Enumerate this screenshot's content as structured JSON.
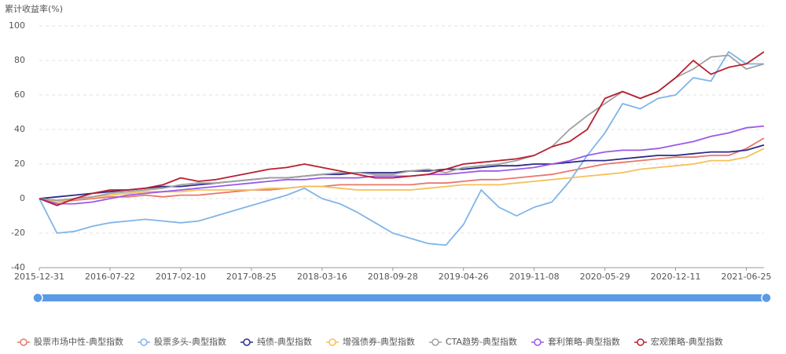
{
  "chart_data": {
    "type": "line",
    "title": "累计收益率(%)",
    "categories": [
      "2015-12-31",
      null,
      null,
      null,
      "2016-07-22",
      null,
      null,
      null,
      "2017-02-10",
      null,
      null,
      null,
      "2017-08-25",
      null,
      null,
      null,
      "2018-03-16",
      null,
      null,
      null,
      "2018-09-28",
      null,
      null,
      null,
      "2019-04-26",
      null,
      null,
      null,
      "2019-11-08",
      null,
      null,
      null,
      "2020-05-29",
      null,
      null,
      null,
      "2020-12-11",
      null,
      null,
      null,
      "2021-06-25",
      null
    ],
    "ylim": [
      -40,
      100
    ],
    "yticks": [
      -40,
      -20,
      0,
      20,
      40,
      60,
      80,
      100
    ],
    "grid": true,
    "series": [
      {
        "name": "股票市场中性-典型指数",
        "color": "#e8786a",
        "values": [
          0,
          -2,
          -1,
          0,
          1,
          1,
          2,
          1,
          2,
          2,
          3,
          4,
          5,
          5,
          6,
          7,
          7,
          8,
          8,
          8,
          8,
          8,
          9,
          9,
          10,
          11,
          11,
          12,
          13,
          14,
          16,
          18,
          20,
          21,
          22,
          23,
          24,
          24,
          25,
          25,
          29,
          35
        ]
      },
      {
        "name": "股票多头-典型指数",
        "color": "#7fb5e8",
        "values": [
          0,
          -20,
          -19,
          -16,
          -14,
          -13,
          -12,
          -13,
          -14,
          -13,
          -10,
          -7,
          -4,
          -1,
          2,
          6,
          0,
          -3,
          -8,
          -14,
          -20,
          -23,
          -26,
          -27,
          -15,
          5,
          -5,
          -10,
          -5,
          -2,
          10,
          25,
          38,
          55,
          52,
          58,
          60,
          70,
          68,
          85,
          78,
          78
        ]
      },
      {
        "name": "纯债-典型指数",
        "color": "#2c2a8c",
        "values": [
          0,
          1,
          2,
          3,
          4,
          5,
          6,
          7,
          7,
          8,
          9,
          10,
          11,
          12,
          12,
          13,
          14,
          14,
          15,
          15,
          15,
          16,
          16,
          17,
          17,
          18,
          19,
          19,
          20,
          20,
          21,
          22,
          22,
          23,
          24,
          25,
          25,
          26,
          27,
          27,
          28,
          31
        ]
      },
      {
        "name": "增强债券-典型指数",
        "color": "#f5c05a",
        "values": [
          0,
          -2,
          0,
          1,
          2,
          3,
          4,
          4,
          4,
          5,
          5,
          5,
          5,
          6,
          6,
          7,
          7,
          6,
          5,
          5,
          5,
          5,
          6,
          7,
          8,
          8,
          8,
          9,
          10,
          11,
          12,
          13,
          14,
          15,
          17,
          18,
          19,
          20,
          22,
          22,
          24,
          29
        ]
      },
      {
        "name": "CTA趋势-典型指数",
        "color": "#a0a0a0",
        "values": [
          0,
          -1,
          0,
          1,
          3,
          4,
          5,
          6,
          8,
          9,
          9,
          10,
          11,
          12,
          12,
          13,
          14,
          15,
          15,
          14,
          14,
          16,
          17,
          15,
          18,
          19,
          20,
          22,
          25,
          30,
          40,
          48,
          55,
          62,
          58,
          62,
          70,
          75,
          82,
          83,
          75,
          78
        ]
      },
      {
        "name": "套利策略-典型指数",
        "color": "#9b59e8",
        "values": [
          0,
          -3,
          -3,
          -2,
          0,
          2,
          3,
          4,
          5,
          6,
          7,
          8,
          9,
          10,
          11,
          11,
          12,
          12,
          12,
          13,
          13,
          13,
          14,
          14,
          15,
          16,
          16,
          17,
          18,
          20,
          22,
          25,
          27,
          28,
          28,
          29,
          31,
          33,
          36,
          38,
          41,
          42
        ]
      },
      {
        "name": "宏观策略-典型指数",
        "color": "#b8202e",
        "values": [
          0,
          -4,
          0,
          3,
          5,
          5,
          6,
          8,
          12,
          10,
          11,
          13,
          15,
          17,
          18,
          20,
          18,
          16,
          14,
          12,
          12,
          13,
          14,
          17,
          20,
          21,
          22,
          23,
          25,
          30,
          33,
          40,
          58,
          62,
          58,
          62,
          70,
          80,
          72,
          76,
          78,
          85
        ]
      }
    ]
  }
}
